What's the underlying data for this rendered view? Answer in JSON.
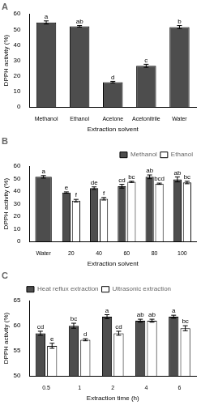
{
  "chart_data": [
    {
      "type": "bar",
      "title": "A",
      "x_label": "Extraction solvent",
      "y_label": "DPPH activity (%)",
      "categories": [
        "Methanol",
        "Ethanol",
        "Acetone",
        "Acetonitrile",
        "Water"
      ],
      "values": [
        54.5,
        52,
        16,
        26.5,
        51.5
      ],
      "errors": [
        1,
        0.5,
        0.5,
        1,
        1
      ],
      "annotations": [
        "a",
        "ab",
        "d",
        "c",
        "b"
      ],
      "color": "#4d4d4d",
      "ylim": [
        0,
        60
      ],
      "yticks": [
        0,
        10,
        20,
        30,
        40,
        50,
        60
      ],
      "grid": false
    },
    {
      "type": "bar",
      "title": "B",
      "x_label": "Extraction solvent",
      "y_label": "DPPH activity (%)",
      "categories": [
        "Water",
        "20",
        "40",
        "60",
        "80",
        "100"
      ],
      "series": [
        {
          "name": "Methanol",
          "color": "#4d4d4d",
          "values": [
            51.5,
            39,
            42.5,
            44,
            51.5,
            49.5
          ],
          "errors": [
            1,
            0.5,
            1,
            1.5,
            1.5,
            2
          ],
          "annotations": [
            "a",
            "e",
            "de",
            "cd",
            "ab",
            "ab"
          ]
        },
        {
          "name": "Ethanol",
          "color": "#ffffff",
          "values": [
            null,
            32.5,
            34,
            47.5,
            46,
            47
          ],
          "errors": [
            null,
            1,
            1,
            0.5,
            0.5,
            1
          ],
          "annotations": [
            null,
            "f",
            "f",
            "bc",
            "bcd",
            "bc"
          ]
        }
      ],
      "ylim": [
        0,
        60
      ],
      "yticks": [
        0,
        10,
        20,
        30,
        40,
        50,
        60
      ],
      "grid": false,
      "legend": "top-right"
    },
    {
      "type": "bar",
      "title": "C",
      "x_label": "Extraction time (h)",
      "y_label": "DPPH activity (%)",
      "categories": [
        "0.5",
        "1",
        "2",
        "4",
        "6"
      ],
      "series": [
        {
          "name": "Heat reflux extraction",
          "color": "#4d4d4d",
          "values": [
            58.5,
            60,
            61.8,
            61,
            61.8
          ],
          "errors": [
            0.4,
            0.5,
            0.4,
            0.3,
            0.3
          ],
          "annotations": [
            "cd",
            "bc",
            "a",
            "ab",
            "a"
          ]
        },
        {
          "name": "Ultrasonic extraction",
          "color": "#ffffff",
          "values": [
            56,
            57.2,
            58.5,
            61,
            59.5
          ],
          "errors": [
            0.5,
            0.2,
            0.4,
            0.3,
            0.5
          ],
          "annotations": [
            "e",
            "d",
            "cd",
            "ab",
            "bc"
          ]
        }
      ],
      "ylim": [
        50,
        65
      ],
      "yticks": [
        50,
        55,
        60,
        65
      ],
      "grid": false,
      "legend": "top"
    }
  ]
}
